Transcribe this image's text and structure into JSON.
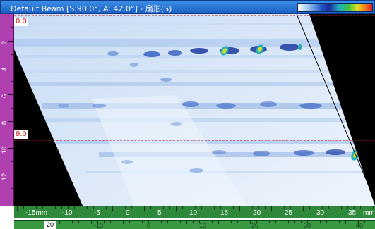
{
  "window": {
    "title": "Default Beam [S:90.0°, A: 42.0°] - 扇形(S)"
  },
  "palette": {
    "colors": [
      "#ffffff",
      "#9ec4ee",
      "#1f56c8",
      "#1a2a9c",
      "#20b0c0",
      "#3cc040",
      "#e0e020",
      "#f08020",
      "#e02020"
    ]
  },
  "gates": {
    "top": {
      "label": "0.0"
    },
    "middle": {
      "label": "9.0"
    }
  },
  "left_ruler": {
    "labels": [
      "2",
      "4",
      "6",
      "8",
      "10",
      "12"
    ]
  },
  "bottom_ruler_1": {
    "labels": [
      "-15mm",
      "-10",
      "-5",
      "0",
      "5",
      "10",
      "15",
      "20",
      "25",
      "30",
      "35",
      "mm"
    ]
  },
  "bottom_ruler_2": {
    "labels": [
      "20",
      "-10",
      "0",
      "10",
      "20",
      "30",
      "40"
    ]
  },
  "colors": {
    "title_bar": "#1a5fc4",
    "left_ruler": "#b040b0",
    "bottom_ruler": "#2e8a3a",
    "gate_line": "#d01818",
    "scan_background": "#000000"
  }
}
